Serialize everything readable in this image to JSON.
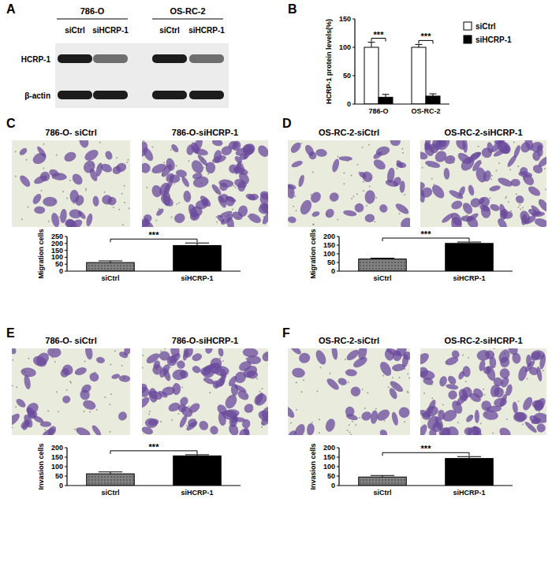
{
  "blot": {
    "panel": "A",
    "groups": [
      "786-O",
      "OS-RC-2"
    ],
    "lanes": [
      "siCtrl",
      "siHCRP-1",
      "siCtrl",
      "siHCRP-1"
    ],
    "rows": [
      "HCRP-1",
      "β-actin"
    ]
  },
  "chart_data": [
    {
      "panel": "B",
      "type": "bar",
      "y_label": "HCRP-1 protein levels(%)",
      "categories": [
        "786-O",
        "OS-RC-2"
      ],
      "series": [
        {
          "name": "siCtrl",
          "color": "#ffffff",
          "values": [
            100,
            100
          ],
          "errors": [
            9,
            5
          ]
        },
        {
          "name": "siHCRP-1",
          "color": "#000000",
          "values": [
            12,
            14
          ],
          "errors": [
            5,
            4
          ]
        }
      ],
      "ylim": [
        0,
        150
      ],
      "yticks": [
        0,
        50,
        100,
        150
      ],
      "legend": "right",
      "annotations": [
        "***",
        "***"
      ]
    },
    {
      "panel": "C",
      "type": "bar",
      "image_titles": [
        "786-O- siCtrl",
        "786-O-siHCRP-1"
      ],
      "y_label": "Migration cells",
      "categories": [
        "siCtrl",
        "siHCRP-1"
      ],
      "values": [
        62,
        185
      ],
      "errors": [
        12,
        18
      ],
      "colors": [
        "#808080",
        "#000000"
      ],
      "ylim": [
        0,
        250
      ],
      "yticks": [
        0,
        50,
        100,
        150,
        200,
        250
      ],
      "annotations": [
        "***"
      ]
    },
    {
      "panel": "D",
      "type": "bar",
      "image_titles": [
        "OS-RC-2-siCtrl",
        "OS-RC-2-siHCRP-1"
      ],
      "y_label": "Migration cells",
      "categories": [
        "siCtrl",
        "siHCRP-1"
      ],
      "values": [
        70,
        160
      ],
      "errors": [
        5,
        8
      ],
      "colors": [
        "#808080",
        "#000000"
      ],
      "ylim": [
        0,
        200
      ],
      "yticks": [
        0,
        50,
        100,
        150,
        200
      ],
      "annotations": [
        "***"
      ]
    },
    {
      "panel": "E",
      "type": "bar",
      "image_titles": [
        "786-O- siCtrl",
        "786-O-siHCRP-1"
      ],
      "y_label": "Invasion cells",
      "categories": [
        "siCtrl",
        "siHCRP-1"
      ],
      "values": [
        62,
        157
      ],
      "errors": [
        10,
        6
      ],
      "colors": [
        "#808080",
        "#000000"
      ],
      "ylim": [
        0,
        200
      ],
      "yticks": [
        0,
        50,
        100,
        150,
        200
      ],
      "annotations": [
        "***"
      ]
    },
    {
      "panel": "F",
      "type": "bar",
      "image_titles": [
        "OS-RC-2-siCtrl",
        "OS-RC-2-siHCRP-1"
      ],
      "y_label": "Invasion cells",
      "categories": [
        "siCtrl",
        "siHCRP-1"
      ],
      "values": [
        45,
        143
      ],
      "errors": [
        8,
        10
      ],
      "colors": [
        "#808080",
        "#000000"
      ],
      "ylim": [
        0,
        200
      ],
      "yticks": [
        0,
        50,
        100,
        150,
        200
      ],
      "annotations": [
        "***"
      ]
    }
  ]
}
